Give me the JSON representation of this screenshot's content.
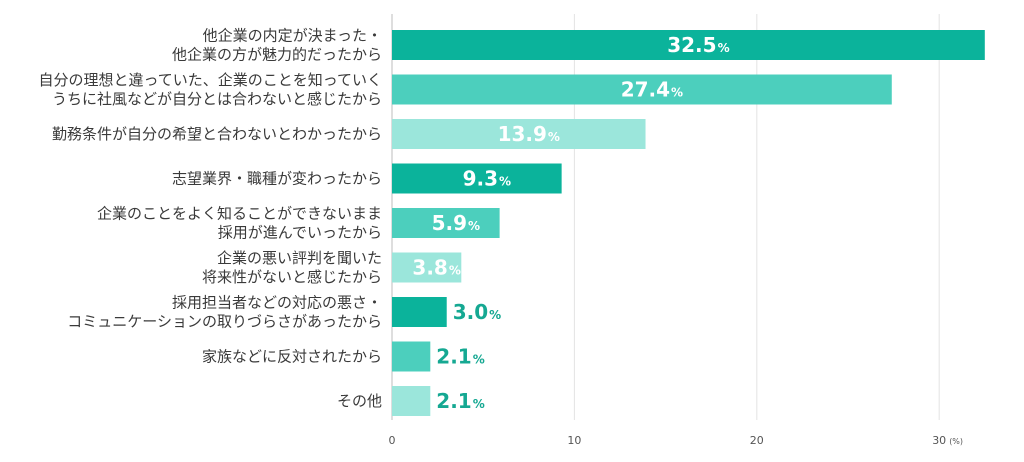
{
  "chart_data": {
    "type": "bar",
    "orientation": "horizontal",
    "categories": [
      [
        "他企業の内定が決まった・",
        "他企業の方が魅力的だったから"
      ],
      [
        "自分の理想と違っていた、企業のことを知っていく",
        "うちに社風などが自分とは合わないと感じたから"
      ],
      [
        "勤務条件が自分の希望と合わないとわかったから"
      ],
      [
        "志望業界・職種が変わったから"
      ],
      [
        "企業のことをよく知ることができないまま",
        "採用が進んでいったから"
      ],
      [
        "企業の悪い評判を聞いた",
        "将来性がないと感じたから"
      ],
      [
        "採用担当者などの対応の悪さ・",
        "コミュニケーションの取りづらさがあったから"
      ],
      [
        "家族などに反対されたから"
      ],
      [
        "その他"
      ]
    ],
    "values": [
      32.5,
      27.4,
      13.9,
      9.3,
      5.9,
      3.8,
      3.0,
      2.1,
      2.1
    ],
    "value_labels": [
      "32.5",
      "27.4",
      "13.9",
      "9.3",
      "5.9",
      "3.8",
      "3.0",
      "2.1",
      "2.1"
    ],
    "value_suffix": "%",
    "bar_colors": [
      "#0bb39b",
      "#4ccfbd",
      "#9be6db",
      "#0bb39b",
      "#4ccfbd",
      "#9be6db",
      "#0bb39b",
      "#4ccfbd",
      "#9be6db"
    ],
    "label_color_outside": "#15a892",
    "xlim": [
      0,
      32.5
    ],
    "xticks": [
      "0",
      "10",
      "20",
      "30"
    ],
    "xunit": "(%)",
    "grid": true
  }
}
